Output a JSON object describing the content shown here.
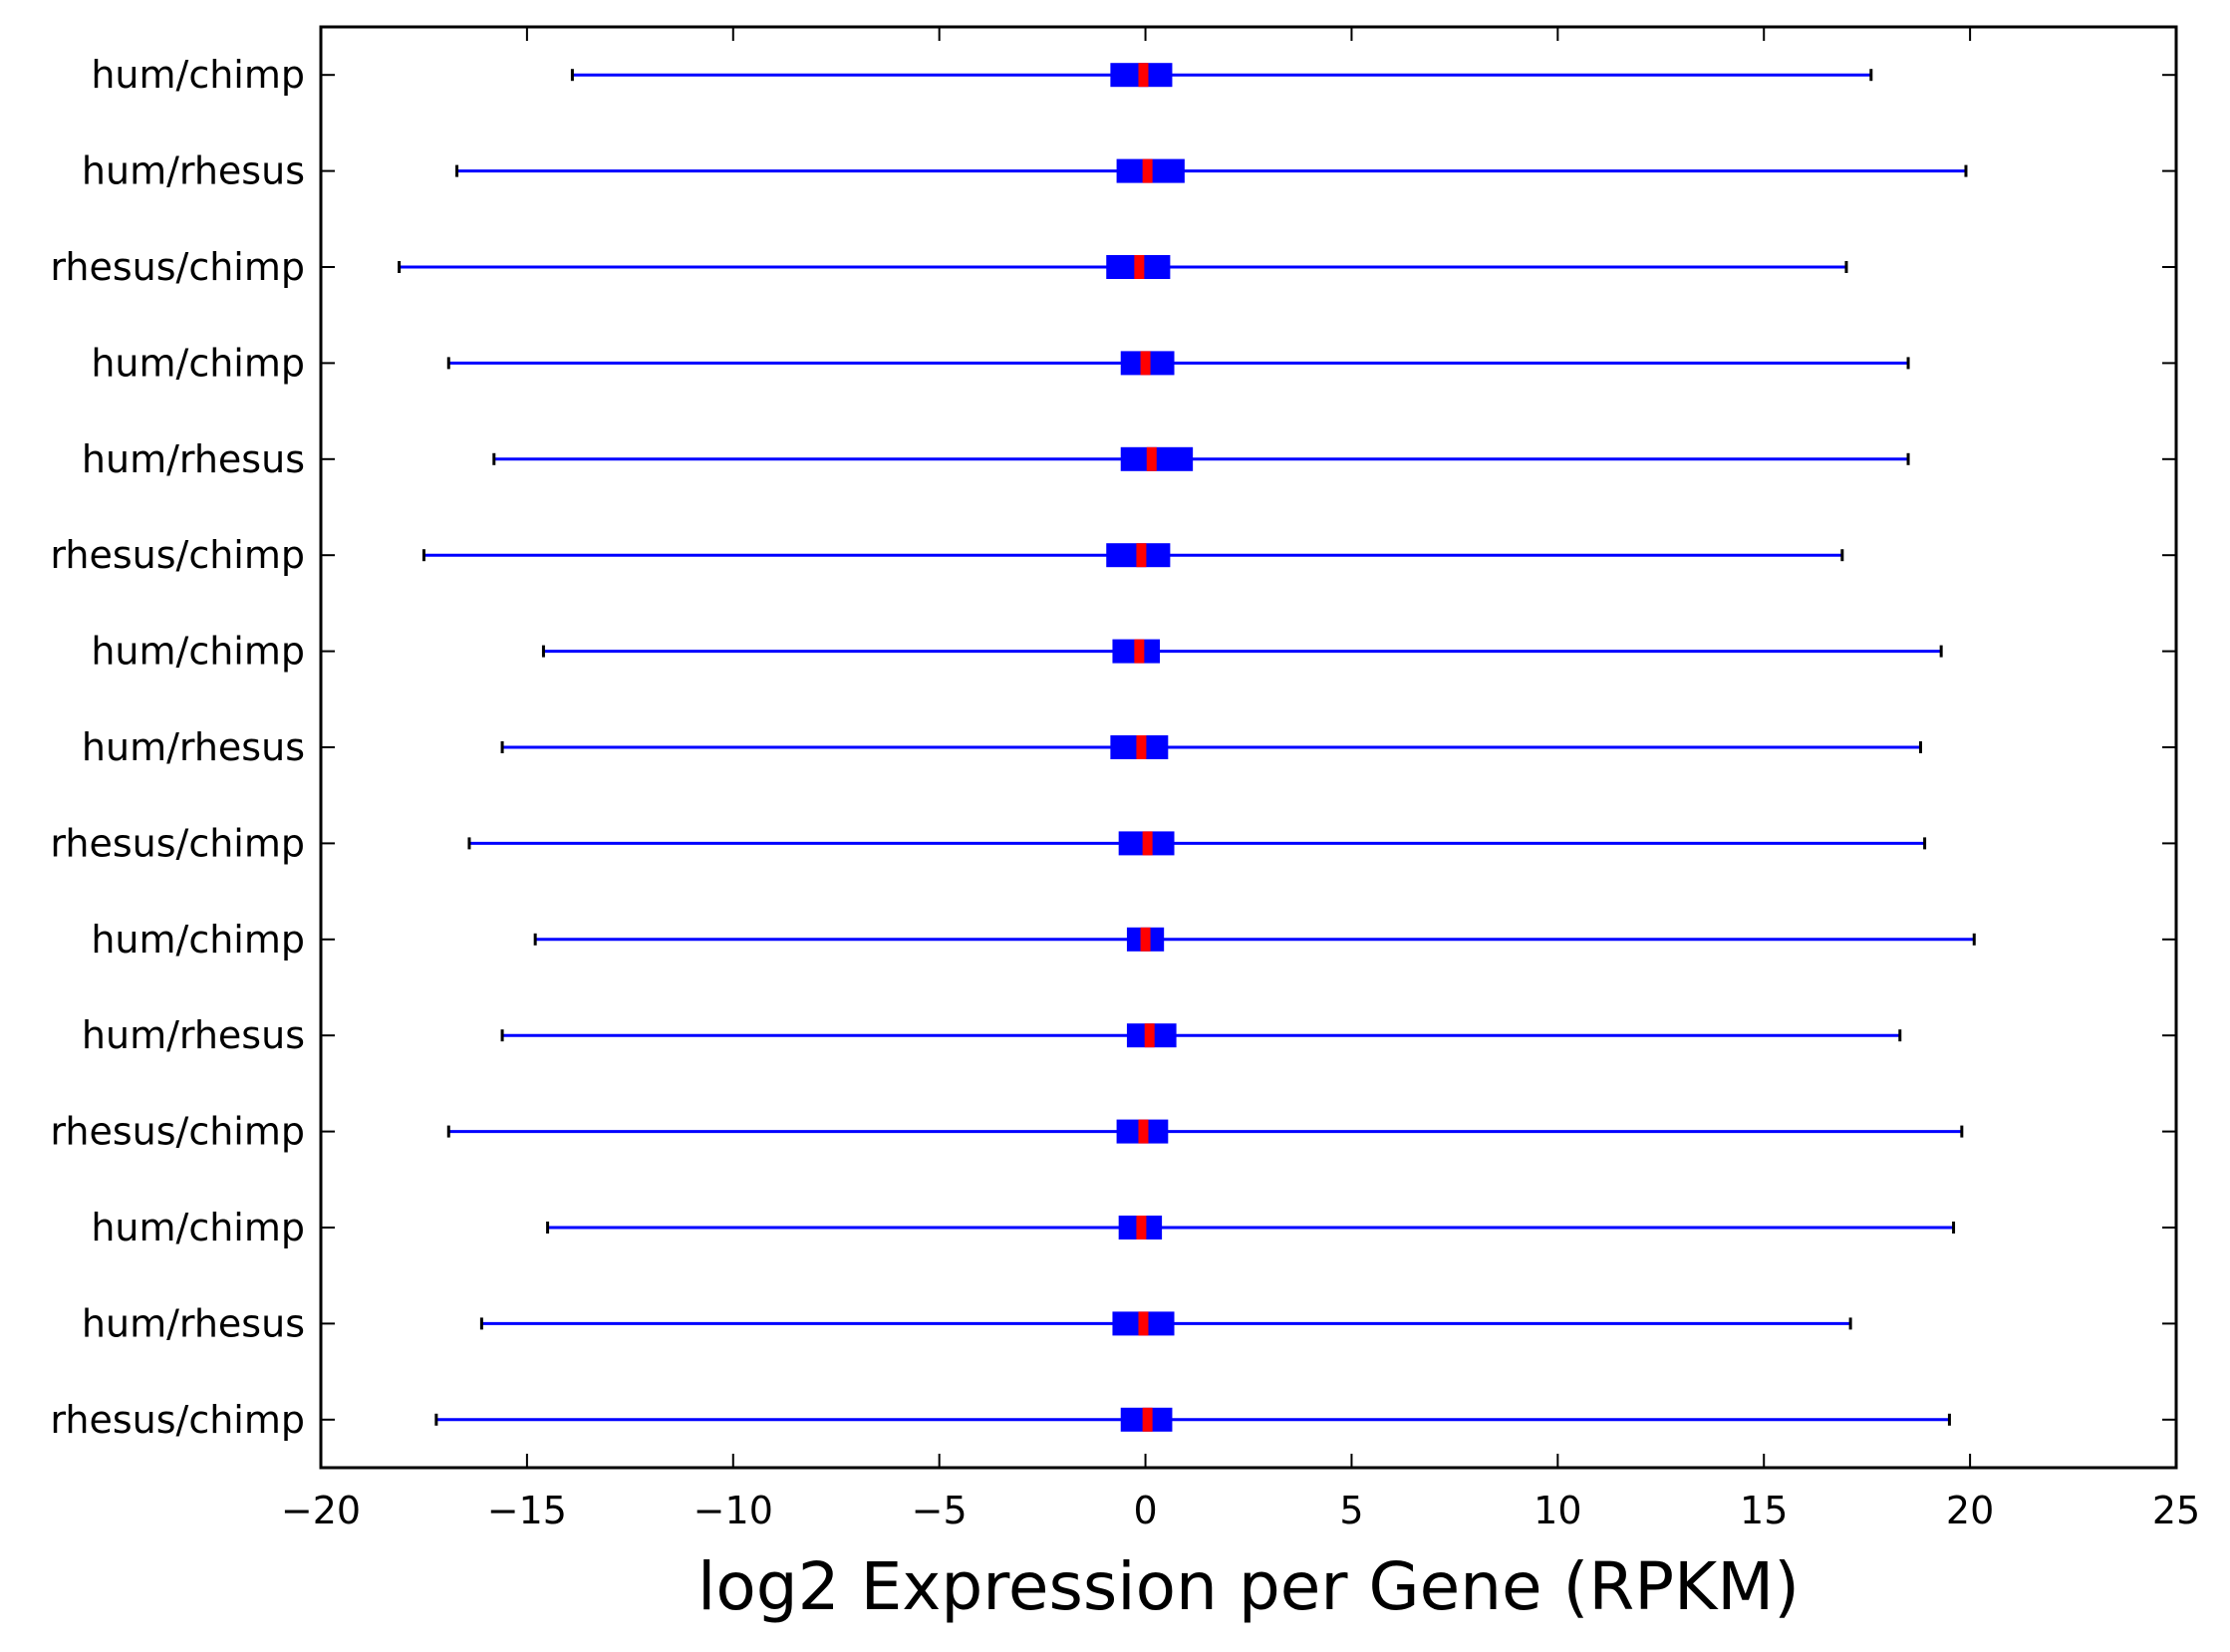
{
  "colors": {
    "box": "#0000ff",
    "median": "#ff0000",
    "whisker": "#0000ff",
    "cap": "#000000",
    "frame": "#000000"
  },
  "chart_data": {
    "type": "boxplot",
    "orientation": "horizontal",
    "title": "",
    "xlabel": "log2 Expression per Gene (RPKM)",
    "ylabel": "",
    "xlim": [
      -20,
      25
    ],
    "xticks": [
      -20,
      -15,
      -10,
      -5,
      0,
      5,
      10,
      15,
      20,
      25
    ],
    "xtick_labels": [
      "−20",
      "−15",
      "−10",
      "−5",
      "0",
      "5",
      "10",
      "15",
      "20",
      "25"
    ],
    "grid": false,
    "categories": [
      "hum/chimp",
      "hum/rhesus",
      "rhesus/chimp",
      "hum/chimp",
      "hum/rhesus",
      "rhesus/chimp",
      "hum/chimp",
      "hum/rhesus",
      "rhesus/chimp",
      "hum/chimp",
      "hum/rhesus",
      "rhesus/chimp",
      "hum/chimp",
      "hum/rhesus",
      "rhesus/chimp"
    ],
    "boxes": [
      {
        "label": "hum/chimp",
        "whislo": -13.9,
        "q1": -0.85,
        "med": -0.05,
        "q3": 0.65,
        "whishi": 17.6
      },
      {
        "label": "hum/rhesus",
        "whislo": -16.7,
        "q1": -0.7,
        "med": 0.05,
        "q3": 0.95,
        "whishi": 19.9
      },
      {
        "label": "rhesus/chimp",
        "whislo": -18.1,
        "q1": -0.95,
        "med": -0.15,
        "q3": 0.6,
        "whishi": 17.0
      },
      {
        "label": "hum/chimp",
        "whislo": -16.9,
        "q1": -0.6,
        "med": 0.0,
        "q3": 0.7,
        "whishi": 18.5
      },
      {
        "label": "hum/rhesus",
        "whislo": -15.8,
        "q1": -0.6,
        "med": 0.15,
        "q3": 1.15,
        "whishi": 18.5
      },
      {
        "label": "rhesus/chimp",
        "whislo": -17.5,
        "q1": -0.95,
        "med": -0.1,
        "q3": 0.6,
        "whishi": 16.9
      },
      {
        "label": "hum/chimp",
        "whislo": -14.6,
        "q1": -0.8,
        "med": -0.15,
        "q3": 0.35,
        "whishi": 19.3
      },
      {
        "label": "hum/rhesus",
        "whislo": -15.6,
        "q1": -0.85,
        "med": -0.1,
        "q3": 0.55,
        "whishi": 18.8
      },
      {
        "label": "rhesus/chimp",
        "whislo": -16.4,
        "q1": -0.65,
        "med": 0.05,
        "q3": 0.7,
        "whishi": 18.9
      },
      {
        "label": "hum/chimp",
        "whislo": -14.8,
        "q1": -0.45,
        "med": 0.0,
        "q3": 0.45,
        "whishi": 20.1
      },
      {
        "label": "hum/rhesus",
        "whislo": -15.6,
        "q1": -0.45,
        "med": 0.1,
        "q3": 0.75,
        "whishi": 18.3
      },
      {
        "label": "rhesus/chimp",
        "whislo": -16.9,
        "q1": -0.7,
        "med": -0.05,
        "q3": 0.55,
        "whishi": 19.8
      },
      {
        "label": "hum/chimp",
        "whislo": -14.5,
        "q1": -0.65,
        "med": -0.1,
        "q3": 0.4,
        "whishi": 19.6
      },
      {
        "label": "hum/rhesus",
        "whislo": -16.1,
        "q1": -0.8,
        "med": -0.05,
        "q3": 0.7,
        "whishi": 17.1
      },
      {
        "label": "rhesus/chimp",
        "whislo": -17.2,
        "q1": -0.6,
        "med": 0.05,
        "q3": 0.65,
        "whishi": 19.5
      }
    ]
  }
}
